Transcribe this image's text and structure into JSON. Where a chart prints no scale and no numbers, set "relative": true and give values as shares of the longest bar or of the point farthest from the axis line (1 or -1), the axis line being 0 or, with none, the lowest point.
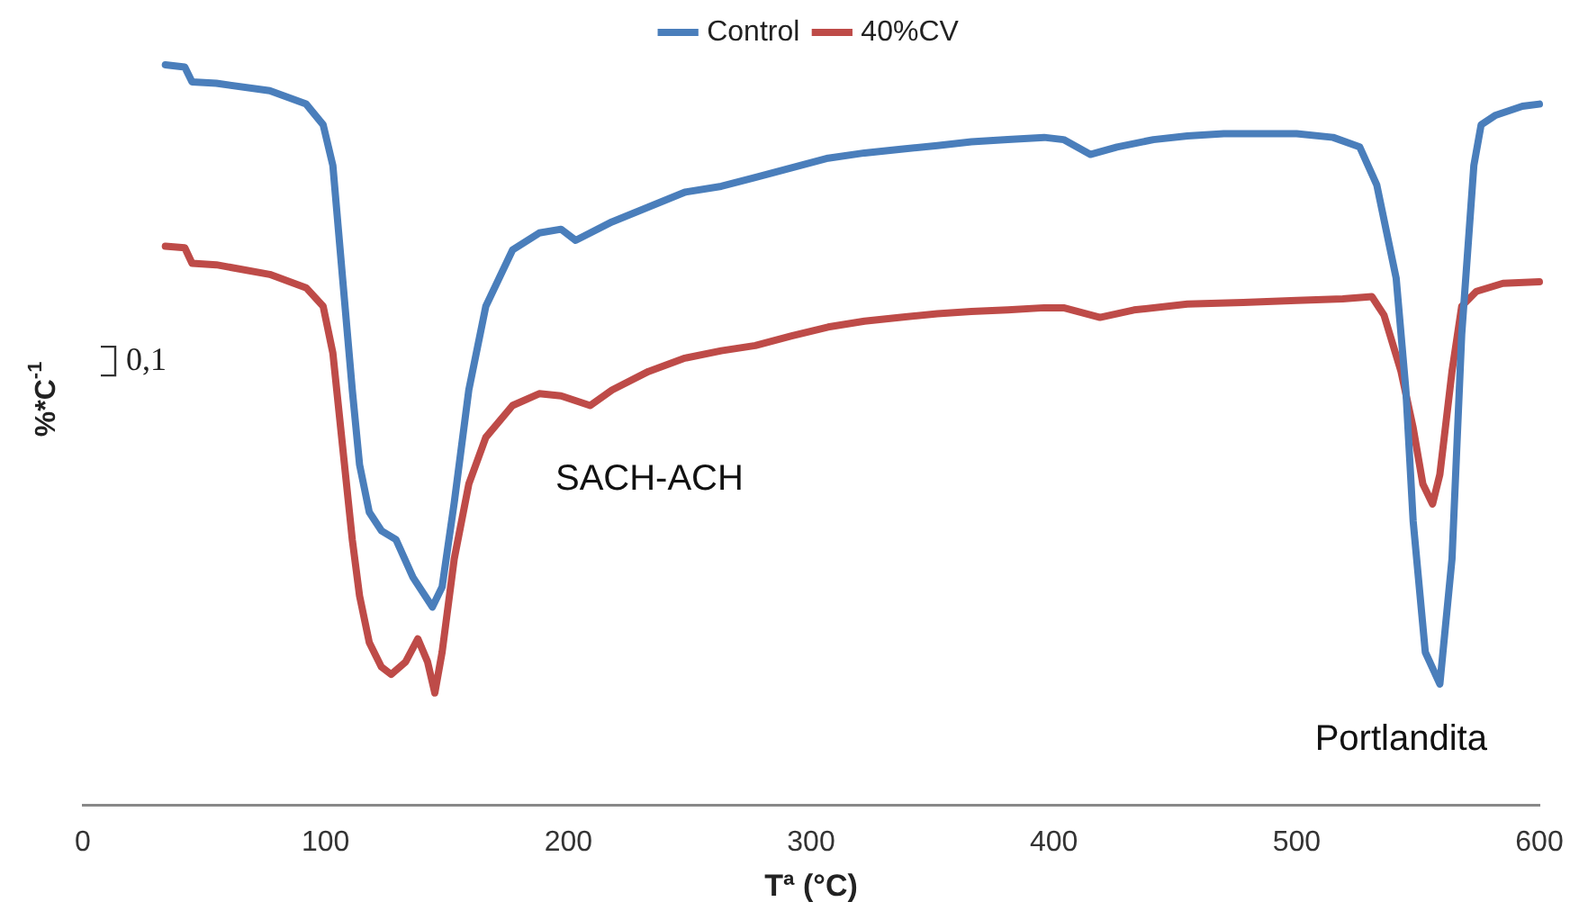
{
  "chart_data": {
    "type": "line",
    "relative": true,
    "xlabel": "Tª (°C)",
    "ylabel": "%*C$^{-1}$",
    "xlim": [
      0,
      600
    ],
    "xticks": [
      0,
      100,
      200,
      300,
      400,
      500,
      600
    ],
    "legend": "top",
    "grid": false,
    "marker": "none",
    "line_style": "solid",
    "annotations": [
      "0,1",
      "SACH-ACH",
      "Portlandita"
    ],
    "series": [
      {
        "name": "Control",
        "color": "#4a7ebb",
        "x": [
          34,
          42,
          45,
          55,
          77,
          92,
          99,
          103,
          107,
          111,
          114,
          118,
          123,
          129,
          136,
          144,
          148,
          153,
          159,
          166,
          177,
          188,
          197,
          203,
          218,
          233,
          248,
          263,
          277,
          292,
          307,
          322,
          337,
          352,
          366,
          381,
          396,
          404,
          415,
          426,
          441,
          455,
          470,
          485,
          500,
          515,
          526,
          533,
          541,
          545,
          548,
          553,
          559,
          564,
          568,
          573,
          576,
          582,
          593,
          600
        ],
        "values": [
          1.0,
          0.997,
          0.977,
          0.975,
          0.965,
          0.947,
          0.919,
          0.864,
          0.712,
          0.561,
          0.46,
          0.396,
          0.371,
          0.359,
          0.308,
          0.268,
          0.295,
          0.409,
          0.561,
          0.674,
          0.75,
          0.773,
          0.778,
          0.763,
          0.788,
          0.808,
          0.828,
          0.836,
          0.848,
          0.861,
          0.874,
          0.881,
          0.886,
          0.891,
          0.896,
          0.899,
          0.902,
          0.899,
          0.879,
          0.889,
          0.899,
          0.904,
          0.907,
          0.907,
          0.907,
          0.902,
          0.889,
          0.838,
          0.712,
          0.561,
          0.384,
          0.207,
          0.164,
          0.333,
          0.636,
          0.864,
          0.919,
          0.932,
          0.944,
          0.947
        ]
      },
      {
        "name": "40%CV",
        "color": "#be4b48",
        "x": [
          34,
          42,
          45,
          55,
          77,
          92,
          99,
          103,
          107,
          111,
          114,
          118,
          123,
          127,
          133,
          138,
          142,
          145,
          148,
          153,
          159,
          166,
          177,
          188,
          197,
          209,
          218,
          233,
          248,
          263,
          277,
          292,
          307,
          322,
          337,
          352,
          366,
          381,
          396,
          404,
          419,
          433,
          455,
          478,
          500,
          519,
          531,
          536,
          543,
          548,
          552,
          556,
          559,
          564,
          568,
          574,
          585,
          600
        ],
        "values": [
          0.755,
          0.753,
          0.732,
          0.73,
          0.717,
          0.699,
          0.674,
          0.611,
          0.485,
          0.359,
          0.283,
          0.22,
          0.187,
          0.177,
          0.194,
          0.225,
          0.194,
          0.152,
          0.207,
          0.333,
          0.434,
          0.497,
          0.54,
          0.556,
          0.553,
          0.54,
          0.561,
          0.586,
          0.604,
          0.614,
          0.621,
          0.634,
          0.646,
          0.654,
          0.659,
          0.664,
          0.667,
          0.669,
          0.672,
          0.672,
          0.659,
          0.669,
          0.677,
          0.679,
          0.682,
          0.684,
          0.687,
          0.662,
          0.586,
          0.51,
          0.434,
          0.407,
          0.447,
          0.586,
          0.674,
          0.694,
          0.705,
          0.707
        ]
      }
    ]
  }
}
